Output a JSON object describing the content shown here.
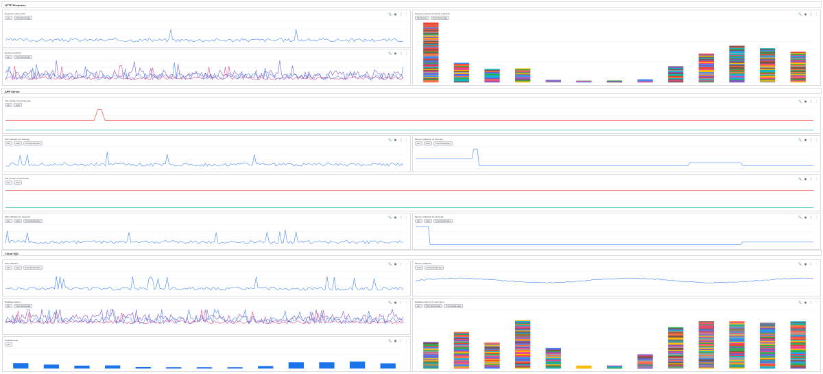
{
  "sections": {
    "http": "HTTP Response",
    "app": "APP Server",
    "sql": "Cloud SQL"
  },
  "tools": {
    "zoom": "🔍",
    "save": "▣",
    "expand": "⛶",
    "more": "⋮"
  },
  "cards": [
    {
      "id": "c1",
      "title": "Response status code",
      "chips": [
        "sum",
        "5 min interval (rate)"
      ]
    },
    {
      "id": "c2",
      "title": "Response latency",
      "chips": [
        "sum",
        "5 min interval (rate)"
      ]
    },
    {
      "id": "c3",
      "title": "Response latency (5-minute endpoint)",
      "chips": [
        "Top 50 (sum)",
        "5 min interval (rate)"
      ]
    },
    {
      "id": "c4",
      "title": "The number of running pods",
      "chips": [
        "sum",
        "count"
      ]
    },
    {
      "id": "c5",
      "title": "CPU utilization for web-app",
      "chips": [
        "sum",
        "mean",
        "5 min interval (rate)"
      ]
    },
    {
      "id": "c6",
      "title": "Memory utilization for web-app",
      "chips": [
        "sum",
        "mean",
        "5 min interval (rate)"
      ]
    },
    {
      "id": "c7",
      "title": "The number of cloud pods",
      "chips": [
        "sum",
        "count"
      ]
    },
    {
      "id": "c8",
      "title": "CPU utilization for cloud-sql",
      "chips": [
        "sum",
        "mean",
        "5 min interval (rate)"
      ]
    },
    {
      "id": "c9",
      "title": "Memory utilization for cloud-sql",
      "chips": [
        "sum",
        "mean",
        "5 min interval (rate)"
      ]
    },
    {
      "id": "c10",
      "title": "CPU utilization",
      "chips": [
        "sum",
        "mean",
        "5 min interval (rate)"
      ]
    },
    {
      "id": "c11",
      "title": "Memory utilization",
      "chips": [
        "mean",
        "5 min interval (rate)"
      ]
    },
    {
      "id": "c12",
      "title": "Database latency",
      "chips": [
        "sum",
        "5 min interval (rate)"
      ]
    },
    {
      "id": "c13",
      "title": "Database latency for each query",
      "chips": [
        "sum",
        "5 min interval (rate)",
        "5 min interval (rate)"
      ]
    },
    {
      "id": "c14",
      "title": "Database load",
      "chips": [
        "sum"
      ]
    }
  ],
  "colors": {
    "blue": "#4285f4",
    "pink": "#e84a8a",
    "purple": "#7e57c2",
    "red": "#ea4335",
    "teal": "#12b5cb",
    "bar": "#1a73e8",
    "grid": "#eceff1"
  }
}
